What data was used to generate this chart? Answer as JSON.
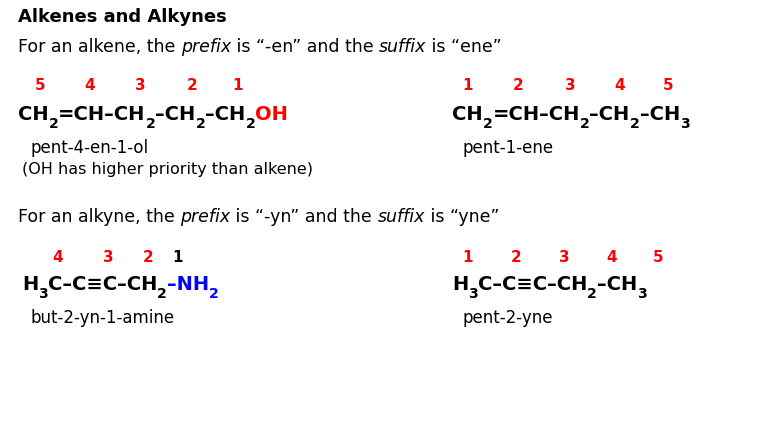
{
  "bg_color": "#ffffff",
  "black": "#000000",
  "red": "#ff0000",
  "blue": "#0000ff",
  "figsize": [
    7.6,
    4.36
  ],
  "dpi": 100,
  "title": "Alkenes and Alkynes",
  "alkene_line1_parts": [
    [
      "For an alkene, the ",
      false,
      false,
      "#000000"
    ],
    [
      "prefix",
      false,
      true,
      "#000000"
    ],
    [
      " is “-en” and the ",
      false,
      false,
      "#000000"
    ],
    [
      "suffix",
      false,
      true,
      "#000000"
    ],
    [
      " is “ene”",
      false,
      false,
      "#000000"
    ]
  ],
  "alkyne_line1_parts": [
    [
      "For an alkyne, the ",
      false,
      false,
      "#000000"
    ],
    [
      "prefix",
      false,
      true,
      "#000000"
    ],
    [
      " is “-yn” and the ",
      false,
      false,
      "#000000"
    ],
    [
      "suffix",
      false,
      true,
      "#000000"
    ],
    [
      " is “yne”",
      false,
      false,
      "#000000"
    ]
  ],
  "left_alkene_nums": [
    [
      "5",
      "#ff0000"
    ],
    [
      "4",
      "#ff0000"
    ],
    [
      "3",
      "#ff0000"
    ],
    [
      "2",
      "#ff0000"
    ],
    [
      "1",
      "#ff0000"
    ]
  ],
  "right_alkene_nums": [
    [
      "1",
      "#ff0000"
    ],
    [
      "2",
      "#ff0000"
    ],
    [
      "3",
      "#ff0000"
    ],
    [
      "4",
      "#ff0000"
    ],
    [
      "5",
      "#ff0000"
    ]
  ],
  "left_alkyne_nums": [
    [
      "4",
      "#ff0000"
    ],
    [
      "3",
      "#ff0000"
    ],
    [
      "2",
      "#ff0000"
    ],
    [
      "1",
      "#000000"
    ]
  ],
  "right_alkyne_nums": [
    [
      "1",
      "#ff0000"
    ],
    [
      "2",
      "#ff0000"
    ],
    [
      "3",
      "#ff0000"
    ],
    [
      "4",
      "#ff0000"
    ],
    [
      "5",
      "#ff0000"
    ]
  ]
}
